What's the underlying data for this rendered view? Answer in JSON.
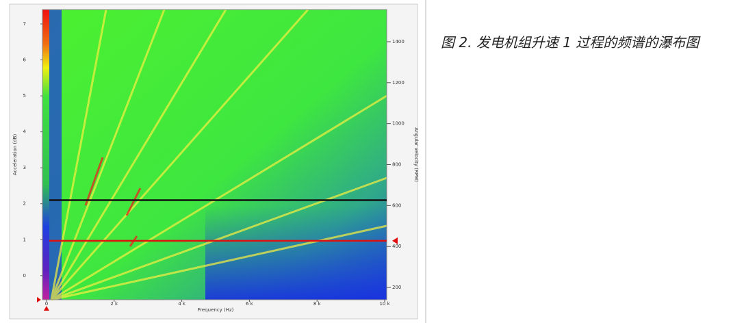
{
  "caption": "图 2. 发电机组升速 1 过程的频谱的瀑布图",
  "chart_data": {
    "type": "spectrogram",
    "xlabel": "Frequency (Hz)",
    "ylabel": "Acceleration (dB)",
    "y2label": "Angular velocity (RPM)",
    "xlim": [
      -120,
      10060
    ],
    "xticks": [
      0,
      {
        "value": 2000,
        "label": "2 k"
      },
      {
        "value": 4000,
        "label": "4 k"
      },
      {
        "value": 6000,
        "label": "6 k"
      },
      {
        "value": 8000,
        "label": "8 k"
      },
      {
        "value": 10000,
        "label": "10 k"
      }
    ],
    "ylim": [
      -0.67,
      7.4
    ],
    "yticks": [
      0,
      1,
      2,
      3,
      4,
      5,
      6,
      7
    ],
    "y2lim": [
      140,
      1557
    ],
    "y2ticks": [
      200,
      400,
      600,
      800,
      1000,
      1200,
      1400
    ],
    "cursors": [
      {
        "value": 2.1,
        "color": "#111111"
      },
      {
        "value": 0.97,
        "color": "#e01010"
      }
    ]
  }
}
